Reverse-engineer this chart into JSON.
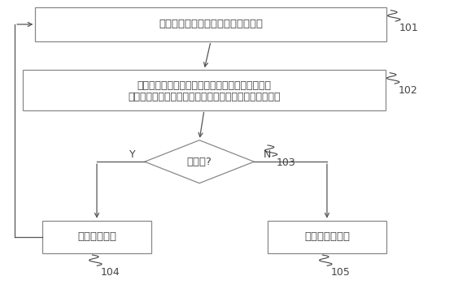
{
  "bg_color": "#ffffff",
  "box_color": "#ffffff",
  "box_edge_color": "#888888",
  "arrow_color": "#555555",
  "text_color": "#444444",
  "box1_text": "获取饮品所在饮品架的实时重量数据",
  "box2_line1": "将实时重量数据与已存储的重量数据库进行比较，",
  "box2_line2": "判断实时重量数据是否与重量数据库中的重量数据相匹配",
  "diamond_text": "相匹配?",
  "box3_text": "判定饮品纯净",
  "box4_text": "判定饮品不纯净",
  "label101": "101",
  "label102": "102",
  "label103": "103",
  "label104": "104",
  "label105": "105",
  "yes_label": "Y",
  "no_label": "N",
  "font_size_box": 9.5,
  "font_size_label": 9
}
